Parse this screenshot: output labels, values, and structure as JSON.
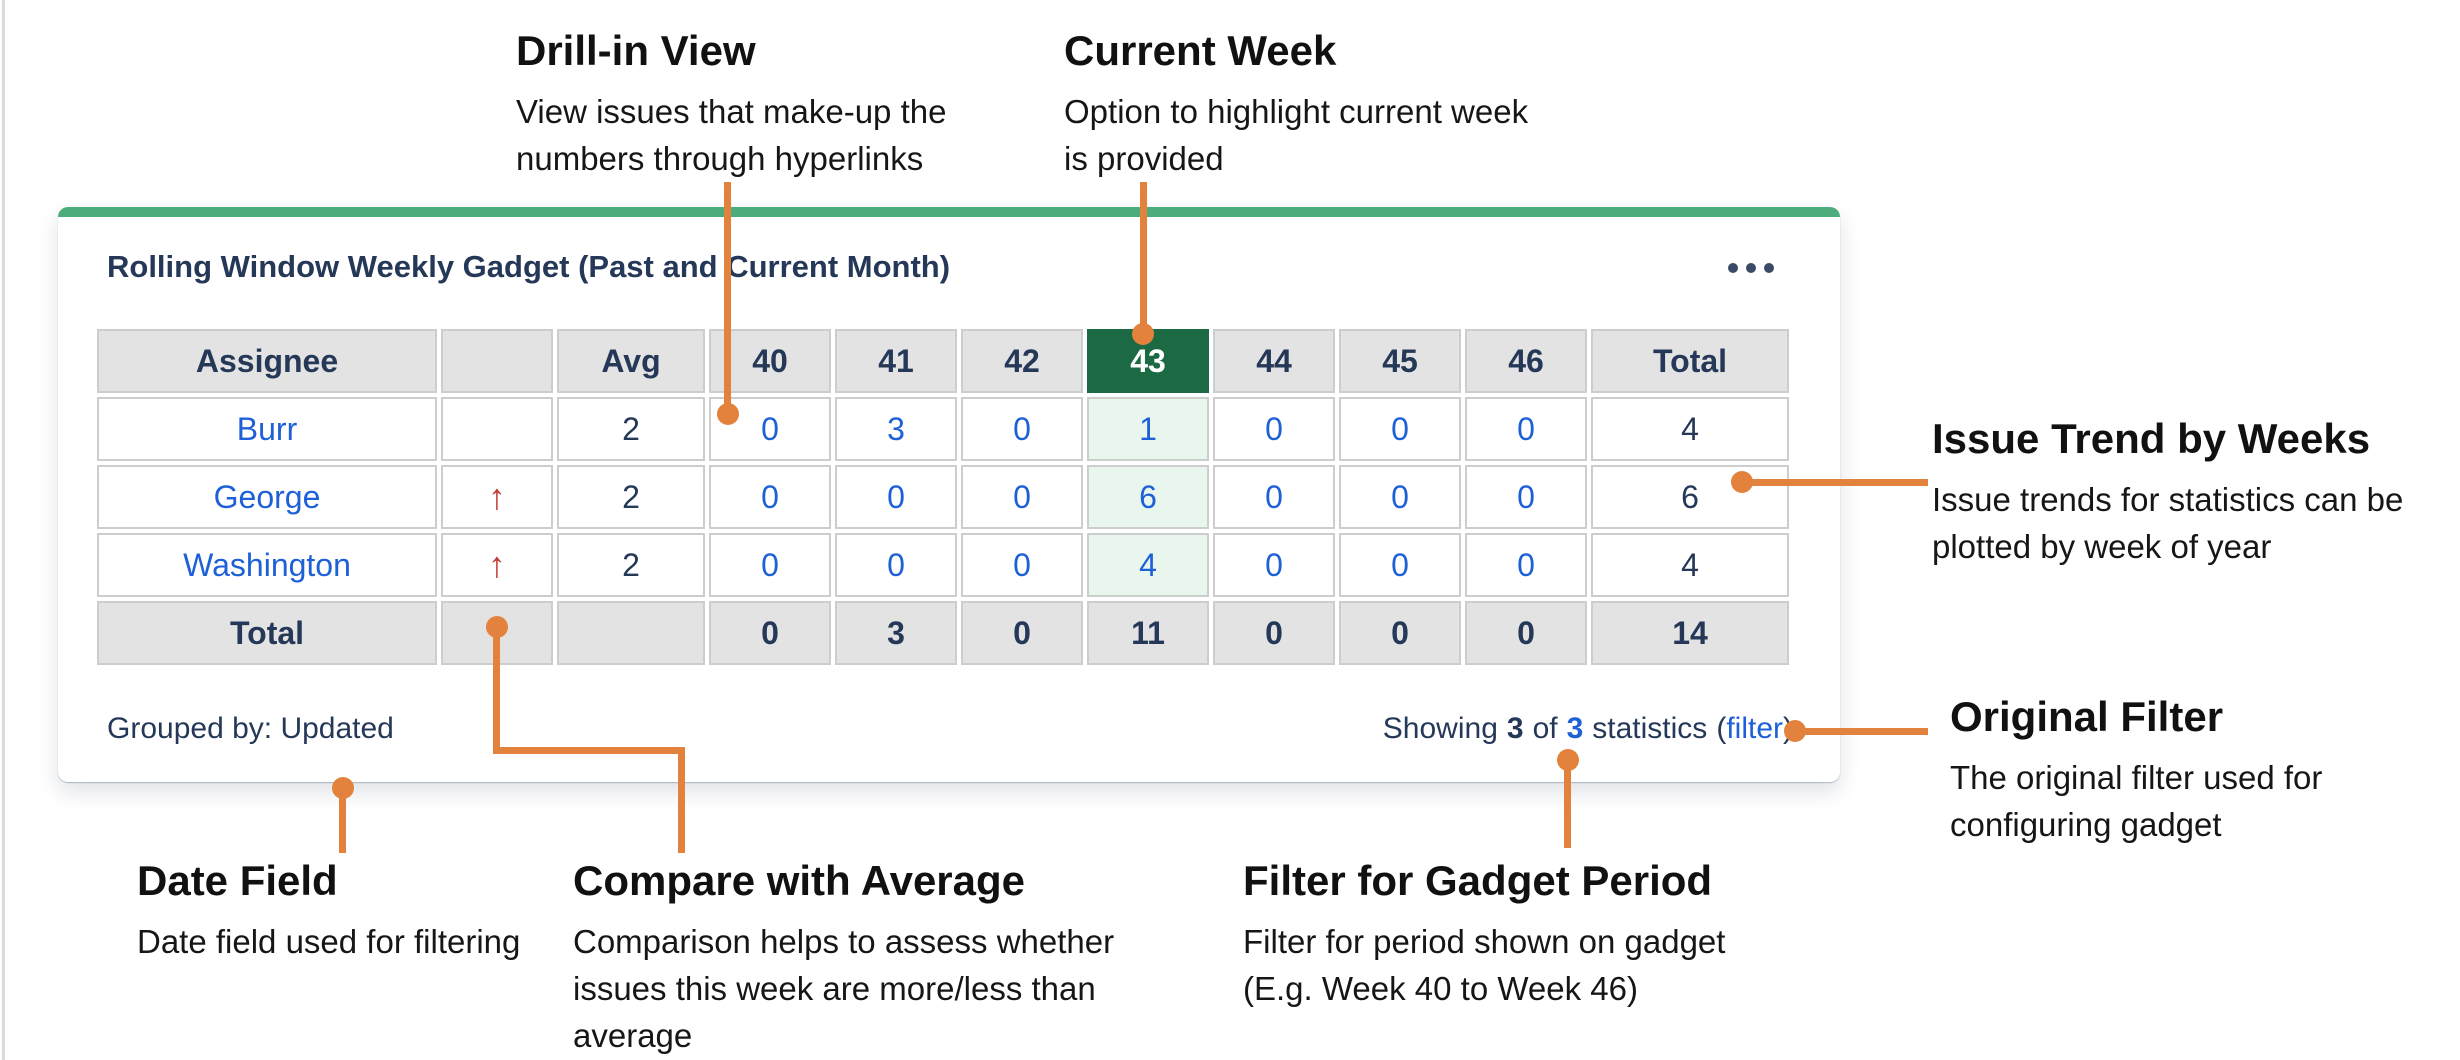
{
  "colors": {
    "orange": "#E2823C",
    "green_bar": "#4CAC7C",
    "green_header": "#1B6A44",
    "mint": "#E9F6EE",
    "grey_cell": "#E3E3E3",
    "navy_text": "#253858",
    "link_blue": "#1E60D8",
    "trend_red": "#C23B34",
    "cell_border": "#CDCDCD"
  },
  "gadget": {
    "title": "Rolling Window Weekly Gadget (Past and Current Month)",
    "menu_icon": "more-options",
    "footer": {
      "grouped_by": "Grouped by: Updated",
      "showing_prefix": "Showing",
      "showing_count": "3",
      "showing_of": "of",
      "showing_total": "3",
      "showing_suffix": "statistics",
      "paren_open": "(",
      "filter_link": "filter",
      "paren_close": ")"
    }
  },
  "table": {
    "columns": [
      "Assignee",
      "",
      "Avg",
      "40",
      "41",
      "42",
      "43",
      "44",
      "45",
      "46",
      "Total"
    ],
    "current_week_column": "43",
    "current_week_index": 6,
    "rows": [
      {
        "assignee": "Burr",
        "trend": "",
        "avg": "2",
        "weeks": [
          "0",
          "3",
          "0",
          "1",
          "0",
          "0",
          "0"
        ],
        "total": "4"
      },
      {
        "assignee": "George",
        "trend": "↑",
        "avg": "2",
        "weeks": [
          "0",
          "0",
          "0",
          "6",
          "0",
          "0",
          "0"
        ],
        "total": "6"
      },
      {
        "assignee": "Washington",
        "trend": "↑",
        "avg": "2",
        "weeks": [
          "0",
          "0",
          "0",
          "4",
          "0",
          "0",
          "0"
        ],
        "total": "4"
      }
    ],
    "total_row": {
      "label": "Total",
      "trend": "",
      "avg": "",
      "weeks": [
        "0",
        "3",
        "0",
        "11",
        "0",
        "0",
        "0"
      ],
      "total": "14"
    }
  },
  "annotations": {
    "drill_in": {
      "title": "Drill-in View",
      "body": "View issues that make-up the\nnumbers through hyperlinks"
    },
    "current_week": {
      "title": "Current Week",
      "body": "Option to highlight current week\nis provided"
    },
    "issue_trend": {
      "title": "Issue Trend by Weeks",
      "body": "Issue trends for statistics can be\nplotted by week of year"
    },
    "original_filter": {
      "title": "Original Filter",
      "body": "The original filter used for\nconfiguring gadget"
    },
    "date_field": {
      "title": "Date Field",
      "body": "Date field used for filtering"
    },
    "compare_avg": {
      "title": "Compare with Average",
      "body": "Comparison helps to assess whether\nissues this week are more/less than\naverage"
    },
    "filter_period": {
      "title": "Filter for Gadget Period",
      "body": "Filter for period shown on gadget\n(E.g. Week 40 to Week 46)"
    }
  }
}
